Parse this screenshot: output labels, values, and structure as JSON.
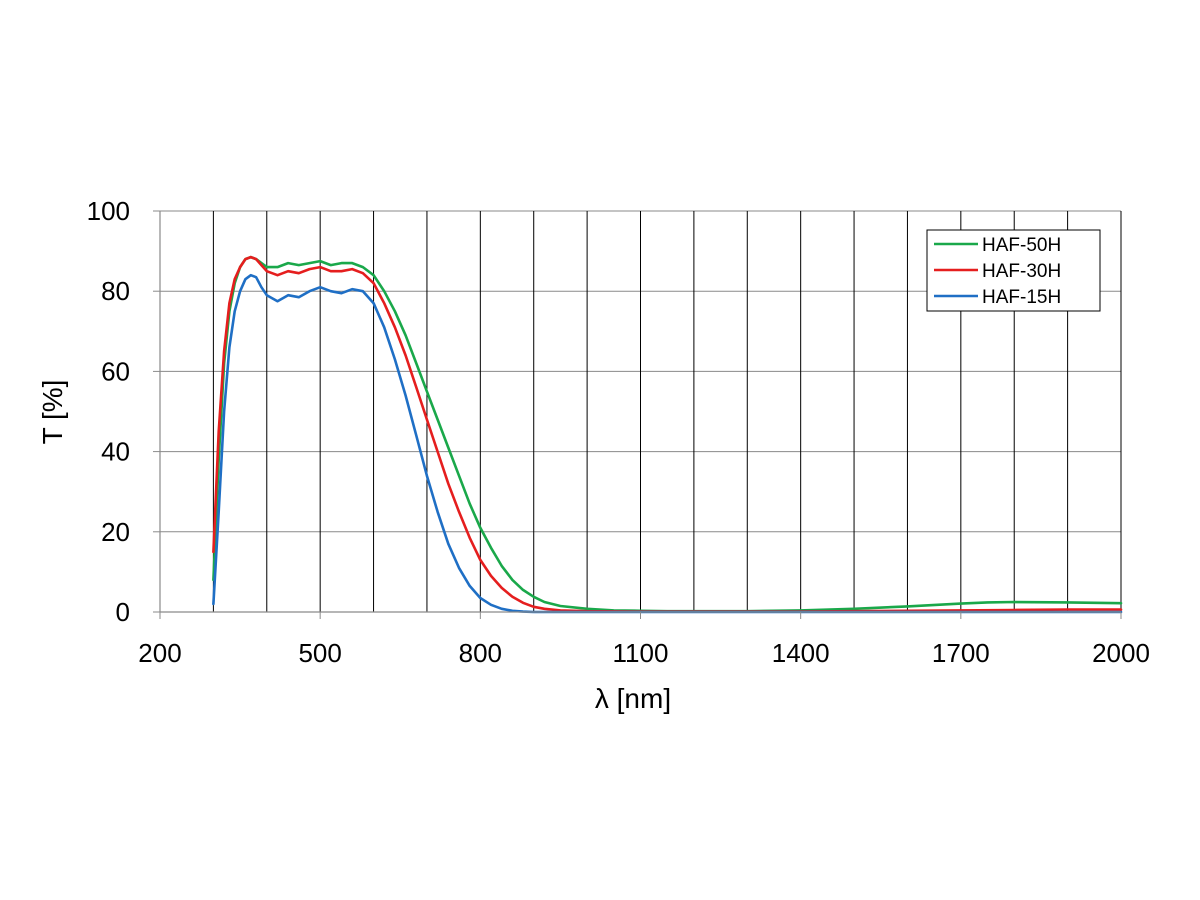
{
  "chart_data": {
    "type": "line",
    "title": "",
    "xlabel": "λ  [nm]",
    "ylabel": "T [%]",
    "xlim": [
      200,
      2000
    ],
    "ylim": [
      0,
      100
    ],
    "x_ticks": [
      200,
      500,
      800,
      1100,
      1400,
      1700,
      2000
    ],
    "y_ticks": [
      0,
      20,
      40,
      60,
      80,
      100
    ],
    "x_gridlines": [
      300,
      400,
      500,
      600,
      700,
      800,
      900,
      1000,
      1100,
      1200,
      1300,
      1400,
      1500,
      1600,
      1700,
      1800,
      1900,
      2000
    ],
    "y_gridlines": [
      20,
      40,
      60,
      80,
      100
    ],
    "grid": true,
    "legend_position": "top-right",
    "series": [
      {
        "name": "HAF-50H",
        "color": "#1aa84a",
        "x": [
          300,
          310,
          320,
          330,
          340,
          350,
          360,
          370,
          380,
          390,
          400,
          420,
          440,
          460,
          480,
          500,
          520,
          540,
          560,
          580,
          600,
          620,
          640,
          660,
          680,
          700,
          720,
          740,
          760,
          780,
          800,
          820,
          840,
          860,
          880,
          900,
          920,
          950,
          1000,
          1050,
          1100,
          1150,
          1200,
          1300,
          1400,
          1500,
          1600,
          1700,
          1750,
          1800,
          1900,
          2000
        ],
        "y": [
          8,
          38,
          62,
          75,
          82,
          86,
          88,
          88.5,
          88,
          87,
          86,
          86,
          87,
          86.5,
          87,
          87.5,
          86.5,
          87,
          87,
          86,
          84,
          80,
          75,
          69,
          62,
          55,
          48,
          41,
          34,
          27,
          21,
          16,
          11.5,
          8,
          5.5,
          3.8,
          2.5,
          1.5,
          0.8,
          0.4,
          0.3,
          0.2,
          0.2,
          0.2,
          0.4,
          0.8,
          1.4,
          2.1,
          2.4,
          2.5,
          2.4,
          2.2
        ]
      },
      {
        "name": "HAF-30H",
        "color": "#e51e1e",
        "x": [
          300,
          310,
          320,
          330,
          340,
          350,
          360,
          370,
          380,
          390,
          400,
          420,
          440,
          460,
          480,
          500,
          520,
          540,
          560,
          580,
          600,
          620,
          640,
          660,
          680,
          700,
          720,
          740,
          760,
          780,
          800,
          820,
          840,
          860,
          880,
          900,
          920,
          950,
          1000,
          1100,
          1200,
          1300,
          1400,
          1500,
          1600,
          1700,
          1800,
          1900,
          2000
        ],
        "y": [
          15,
          45,
          65,
          77,
          83,
          86,
          88,
          88.5,
          88,
          86.5,
          85,
          84,
          85,
          84.5,
          85.5,
          86,
          85,
          85,
          85.5,
          84.5,
          82,
          77,
          71,
          64,
          56,
          48,
          40,
          32,
          25,
          18.5,
          13,
          9,
          6,
          3.8,
          2.3,
          1.3,
          0.8,
          0.4,
          0.2,
          0.1,
          0.1,
          0.1,
          0.1,
          0.2,
          0.3,
          0.4,
          0.5,
          0.6,
          0.6
        ]
      },
      {
        "name": "HAF-15H",
        "color": "#1f6fc5",
        "x": [
          300,
          310,
          320,
          330,
          340,
          350,
          360,
          370,
          380,
          390,
          400,
          420,
          440,
          460,
          480,
          500,
          520,
          540,
          560,
          580,
          600,
          620,
          640,
          660,
          680,
          700,
          720,
          740,
          760,
          780,
          800,
          820,
          840,
          860,
          880,
          900,
          950,
          1000,
          1200,
          1500,
          2000
        ],
        "y": [
          2,
          25,
          50,
          66,
          75,
          80,
          83,
          84,
          83.5,
          81,
          79,
          77.5,
          79,
          78.5,
          80,
          81,
          80,
          79.5,
          80.5,
          80,
          77,
          71,
          63,
          54,
          44,
          34,
          25,
          17,
          11,
          6.5,
          3.5,
          1.8,
          0.8,
          0.3,
          0.1,
          0,
          0,
          0,
          0,
          0,
          0
        ]
      }
    ]
  }
}
